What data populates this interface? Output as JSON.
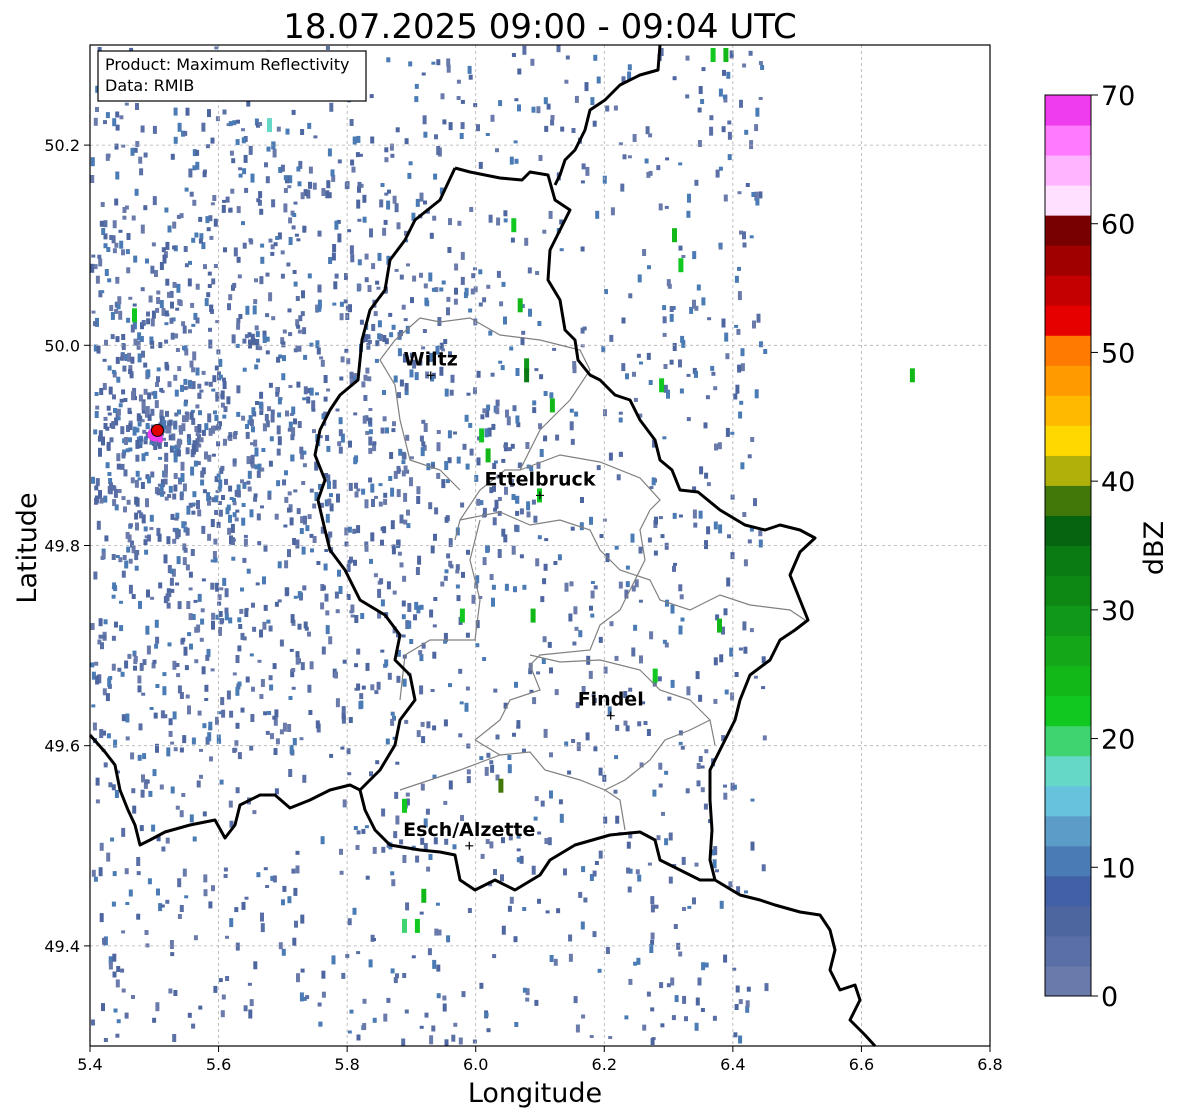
{
  "title": "18.07.2025 09:00 - 09:04 UTC",
  "info_box": {
    "line1": "Product: Maximum Reflectivity",
    "line2": "Data: RMIB"
  },
  "xlabel": "Longitude",
  "ylabel": "Latitude",
  "xlim": [
    5.4,
    6.8
  ],
  "ylim": [
    49.3,
    50.3
  ],
  "xticks": [
    {
      "value": 5.4,
      "label": "5.4"
    },
    {
      "value": 5.6,
      "label": "5.6"
    },
    {
      "value": 5.8,
      "label": "5.8"
    },
    {
      "value": 6.0,
      "label": "6.0"
    },
    {
      "value": 6.2,
      "label": "6.2"
    },
    {
      "value": 6.4,
      "label": "6.4"
    },
    {
      "value": 6.6,
      "label": "6.6"
    },
    {
      "value": 6.8,
      "label": "6.8"
    }
  ],
  "yticks": [
    {
      "value": 49.4,
      "label": "49.4"
    },
    {
      "value": 49.6,
      "label": "49.6"
    },
    {
      "value": 49.8,
      "label": "49.8"
    },
    {
      "value": 50.0,
      "label": "50.0"
    },
    {
      "value": 50.2,
      "label": "50.2"
    }
  ],
  "colorbar": {
    "label": "dBZ",
    "min": 0,
    "max": 70,
    "ticks": [
      {
        "value": 0,
        "label": "0"
      },
      {
        "value": 10,
        "label": "10"
      },
      {
        "value": 20,
        "label": "20"
      },
      {
        "value": 30,
        "label": "30"
      },
      {
        "value": 40,
        "label": "40"
      },
      {
        "value": 50,
        "label": "50"
      },
      {
        "value": 60,
        "label": "60"
      },
      {
        "value": 70,
        "label": "70"
      }
    ],
    "colors": [
      "#6a7bab",
      "#5a6fa5",
      "#4e66a0",
      "#4260a6",
      "#4a7bb4",
      "#5b9cc8",
      "#66c2dd",
      "#66d8c8",
      "#3fd470",
      "#10c820",
      "#12b818",
      "#14a818",
      "#109818",
      "#0d8814",
      "#0a7a12",
      "#066410",
      "#42770a",
      "#b0b00a",
      "#ffd800",
      "#ffba00",
      "#ff9a00",
      "#ff7a00",
      "#e60000",
      "#c40000",
      "#a00000",
      "#780000",
      "#ffe0ff",
      "#ffb4ff",
      "#ff7aff",
      "#ee3cee"
    ]
  },
  "cities": [
    {
      "name": "Wiltz",
      "lon": 5.93,
      "lat": 49.97
    },
    {
      "name": "Ettelbruck",
      "lon": 6.1,
      "lat": 49.85
    },
    {
      "name": "Findel",
      "lon": 6.21,
      "lat": 49.63
    },
    {
      "name": "Esch/Alzette",
      "lon": 5.99,
      "lat": 49.5
    }
  ],
  "radar_site": {
    "lon": 5.505,
    "lat": 49.915
  },
  "precip_cells": [
    {
      "lon": 6.08,
      "lat": 49.98,
      "dbz": 30
    },
    {
      "lon": 6.08,
      "lat": 49.97,
      "dbz": 33
    },
    {
      "lon": 6.07,
      "lat": 50.04,
      "dbz": 24
    },
    {
      "lon": 6.06,
      "lat": 50.12,
      "dbz": 22
    },
    {
      "lon": 6.02,
      "lat": 49.89,
      "dbz": 25
    },
    {
      "lon": 6.01,
      "lat": 49.91,
      "dbz": 22
    },
    {
      "lon": 6.12,
      "lat": 49.94,
      "dbz": 24
    },
    {
      "lon": 6.29,
      "lat": 49.96,
      "dbz": 22
    },
    {
      "lon": 6.31,
      "lat": 50.11,
      "dbz": 24
    },
    {
      "lon": 6.32,
      "lat": 50.08,
      "dbz": 22
    },
    {
      "lon": 6.39,
      "lat": 50.29,
      "dbz": 24
    },
    {
      "lon": 6.37,
      "lat": 50.29,
      "dbz": 22
    },
    {
      "lon": 6.68,
      "lat": 49.97,
      "dbz": 24
    },
    {
      "lon": 6.1,
      "lat": 49.85,
      "dbz": 22
    },
    {
      "lon": 6.09,
      "lat": 49.73,
      "dbz": 24
    },
    {
      "lon": 5.98,
      "lat": 49.73,
      "dbz": 22
    },
    {
      "lon": 6.38,
      "lat": 49.72,
      "dbz": 24
    },
    {
      "lon": 6.28,
      "lat": 49.67,
      "dbz": 22
    },
    {
      "lon": 6.04,
      "lat": 49.56,
      "dbz": 38
    },
    {
      "lon": 5.92,
      "lat": 49.45,
      "dbz": 24
    },
    {
      "lon": 5.91,
      "lat": 49.42,
      "dbz": 22
    },
    {
      "lon": 5.89,
      "lat": 49.42,
      "dbz": 20
    },
    {
      "lon": 5.89,
      "lat": 49.54,
      "dbz": 22
    },
    {
      "lon": 5.47,
      "lat": 50.03,
      "dbz": 22
    },
    {
      "lon": 5.68,
      "lat": 50.22,
      "dbz": 18
    },
    {
      "lon": 5.51,
      "lat": 49.91,
      "dbz": 70
    }
  ]
}
